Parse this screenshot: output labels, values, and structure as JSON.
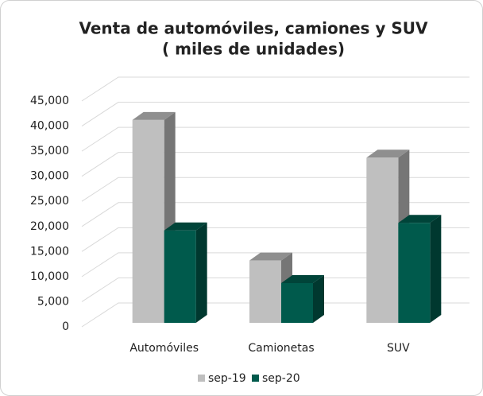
{
  "chart_data": {
    "type": "bar3d",
    "title": "Venta de automóviles, camiones y SUV",
    "subtitle": "( miles de unidades)",
    "categories": [
      "Automóviles",
      "Camionetas",
      "SUV"
    ],
    "series": [
      {
        "name": "sep-19",
        "color": "#bfbfbf",
        "values": [
          42000,
          14000,
          34500
        ]
      },
      {
        "name": "sep-20",
        "color": "#005a4c",
        "values": [
          20000,
          9500,
          21500
        ]
      }
    ],
    "ylim": [
      0,
      45000
    ],
    "yticks": [
      0,
      {
        "value": 5000,
        "label": "5,000"
      },
      {
        "value": 10000,
        "label": "10,000"
      },
      {
        "value": 15000,
        "label": "15,000"
      },
      {
        "value": 20000,
        "label": "20,000"
      },
      {
        "value": 25000,
        "label": "25,000"
      },
      {
        "value": 30000,
        "label": "30,000"
      },
      {
        "value": 35000,
        "label": "35,000"
      },
      {
        "value": 40000,
        "label": "40,000"
      },
      {
        "value": 45000,
        "label": "45,000"
      }
    ],
    "grid": true,
    "legend": "bottom"
  }
}
